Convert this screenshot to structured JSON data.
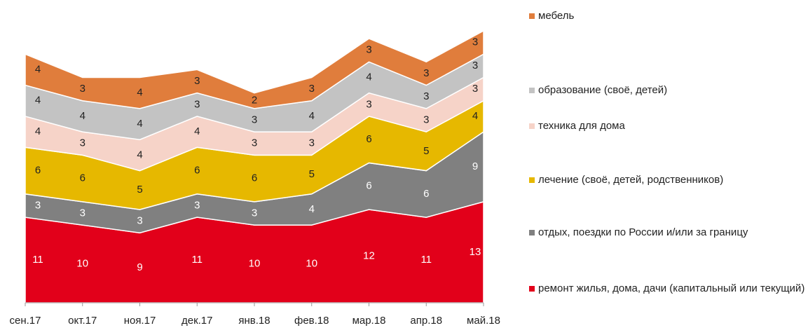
{
  "chart_data": {
    "type": "stacked_area",
    "categories": [
      "сен.17",
      "окт.17",
      "ноя.17",
      "дек.17",
      "янв.18",
      "фев.18",
      "мар.18",
      "апр.18",
      "май.18"
    ],
    "series": [
      {
        "name": "ремонт жилья, дома, дачи (капитальный или текущий)",
        "color": "#e2001a",
        "label_color": "#ffffff",
        "values": [
          11,
          10,
          9,
          11,
          10,
          10,
          12,
          11,
          13
        ]
      },
      {
        "name": "отдых, поездки по России и/или за границу",
        "color": "#808080",
        "label_color": "#ffffff",
        "values": [
          3,
          3,
          3,
          3,
          3,
          4,
          6,
          6,
          9
        ]
      },
      {
        "name": "лечение (своё, детей, родственников)",
        "color": "#e6b800",
        "label_color": "#222222",
        "values": [
          6,
          6,
          5,
          6,
          6,
          5,
          6,
          5,
          4
        ]
      },
      {
        "name": "техника для дома",
        "color": "#f6d3c8",
        "label_color": "#222222",
        "values": [
          4,
          3,
          4,
          4,
          3,
          3,
          3,
          3,
          3
        ]
      },
      {
        "name": "образование (своё, детей)",
        "color": "#c3c3c3",
        "label_color": "#222222",
        "values": [
          4,
          4,
          4,
          3,
          3,
          4,
          4,
          3,
          3
        ]
      },
      {
        "name": "мебель",
        "color": "#e07d3c",
        "label_color": "#222222",
        "values": [
          4,
          3,
          4,
          3,
          2,
          3,
          3,
          3,
          3
        ]
      }
    ],
    "legend": "right"
  }
}
